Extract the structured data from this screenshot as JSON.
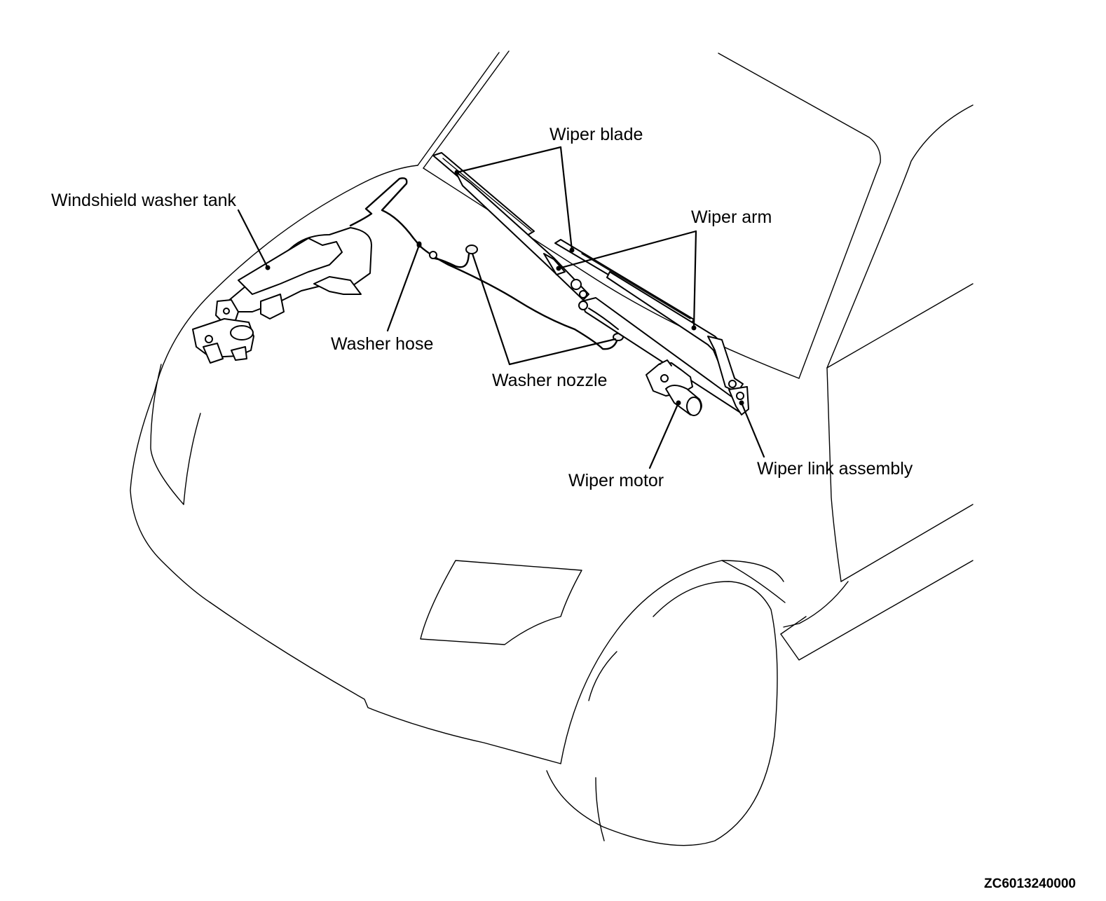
{
  "labels": {
    "wiper_blade": "Wiper blade",
    "windshield_washer_tank": "Windshield washer tank",
    "wiper_arm": "Wiper arm",
    "washer_hose": "Washer hose",
    "washer_nozzle": "Washer nozzle",
    "wiper_motor": "Wiper motor",
    "wiper_link_assembly": "Wiper link assembly"
  },
  "figure_code": "ZC6013240000"
}
